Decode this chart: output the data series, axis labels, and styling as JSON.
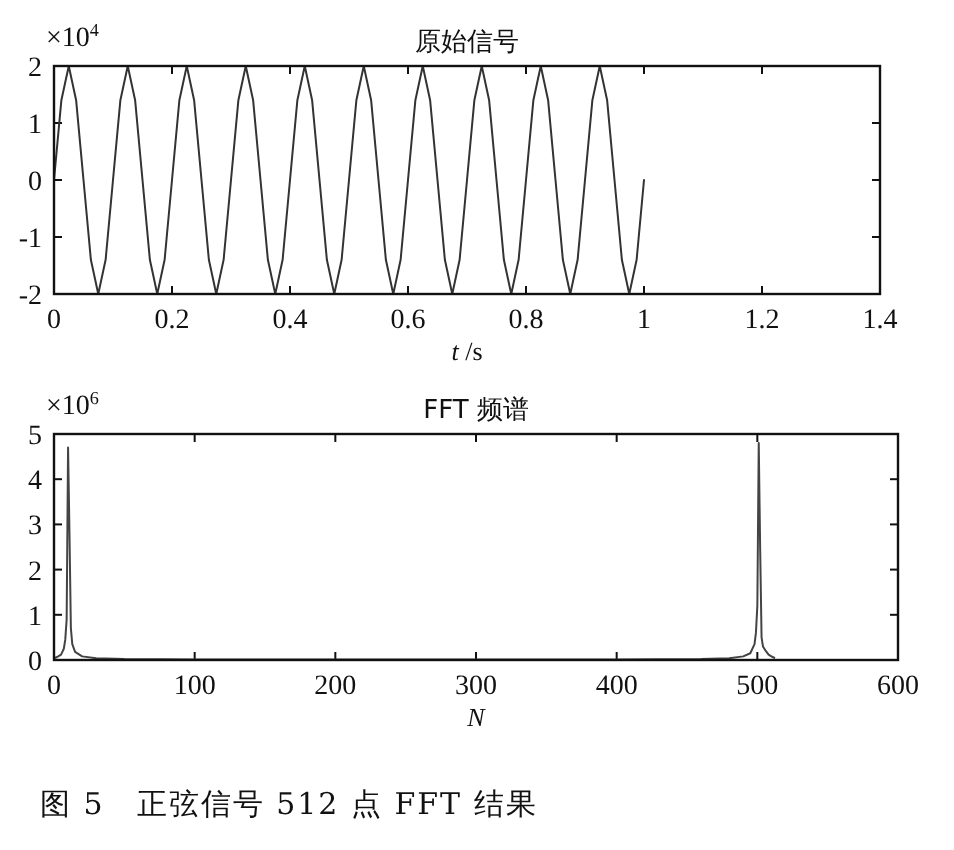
{
  "chart_data": [
    {
      "type": "line",
      "title": "原始信号",
      "xlabel": "*t* /s",
      "annotations": [
        "×10$^{4}$"
      ],
      "xlim": [
        0,
        1.4
      ],
      "ylim": [
        -2,
        2
      ],
      "xticks": [
        0,
        0.2,
        0.4,
        0.6,
        0.8,
        1,
        1.2,
        1.4
      ],
      "yticks": [
        -2,
        -1,
        0,
        1,
        2
      ],
      "series": [
        {
          "color": "#333333",
          "x": [
            0,
            0.0125,
            0.025,
            0.0375,
            0.05,
            0.0625,
            0.075,
            0.0875,
            0.1,
            0.1125,
            0.125,
            0.1375,
            0.15,
            0.1625,
            0.175,
            0.1875,
            0.2,
            0.2125,
            0.225,
            0.2375,
            0.25,
            0.2625,
            0.275,
            0.2875,
            0.3,
            0.3125,
            0.325,
            0.3375,
            0.35,
            0.3625,
            0.375,
            0.3875,
            0.4,
            0.4125,
            0.425,
            0.4375,
            0.45,
            0.4625,
            0.475,
            0.4875,
            0.5,
            0.5125,
            0.525,
            0.5375,
            0.55,
            0.5625,
            0.575,
            0.5875,
            0.6,
            0.6125,
            0.625,
            0.6375,
            0.65,
            0.6625,
            0.675,
            0.6875,
            0.7,
            0.7125,
            0.725,
            0.7375,
            0.75,
            0.7625,
            0.775,
            0.7875,
            0.8,
            0.8125,
            0.825,
            0.8375,
            0.85,
            0.8625,
            0.875,
            0.8875,
            0.9,
            0.9125,
            0.925,
            0.9375,
            0.95,
            0.9625,
            0.975,
            0.9875,
            1
          ],
          "values": [
            0,
            1.4,
            2,
            1.4,
            0,
            -1.4,
            -2,
            -1.4,
            0,
            1.4,
            2,
            1.4,
            0,
            -1.4,
            -2,
            -1.4,
            0,
            1.4,
            2,
            1.4,
            0,
            -1.4,
            -2,
            -1.4,
            0,
            1.4,
            2,
            1.4,
            0,
            -1.4,
            -2,
            -1.4,
            0,
            1.4,
            2,
            1.4,
            0,
            -1.4,
            -2,
            -1.4,
            0,
            1.4,
            2,
            1.4,
            0,
            -1.4,
            -2,
            -1.4,
            0,
            1.4,
            2,
            1.4,
            0,
            -1.4,
            -2,
            -1.4,
            0,
            1.4,
            2,
            1.4,
            0,
            -1.4,
            -2,
            -1.4,
            0,
            1.4,
            2,
            1.4,
            0,
            -1.4,
            -2,
            -1.4,
            0,
            1.4,
            2,
            1.4,
            0,
            -1.4,
            -2,
            -1.4,
            0
          ]
        }
      ]
    },
    {
      "type": "line",
      "title": "FFT 频谱",
      "xlabel": "*N*",
      "annotations": [
        "×10$^{6}$",
        "图 5　正弦信号 512 点 FFT 结果"
      ],
      "xlim": [
        0,
        600
      ],
      "ylim": [
        0,
        5
      ],
      "xticks": [
        0,
        100,
        200,
        300,
        400,
        500,
        600
      ],
      "yticks": [
        0,
        1,
        2,
        3,
        4,
        5
      ],
      "series": [
        {
          "color": "#444444",
          "x": [
            1,
            3,
            5,
            7,
            8,
            9,
            10,
            11,
            12,
            13,
            15,
            20,
            30,
            50,
            100,
            200,
            300,
            400,
            460,
            480,
            490,
            495,
            498,
            499,
            500,
            501,
            502,
            503,
            504,
            506,
            508,
            510,
            512
          ],
          "values": [
            0.05,
            0.08,
            0.12,
            0.25,
            0.45,
            0.9,
            4.7,
            2.8,
            0.7,
            0.35,
            0.18,
            0.08,
            0.04,
            0.02,
            0.01,
            0.01,
            0.01,
            0.01,
            0.02,
            0.04,
            0.08,
            0.15,
            0.35,
            0.6,
            1.2,
            4.8,
            2.5,
            0.5,
            0.3,
            0.2,
            0.12,
            0.08,
            0.05
          ]
        }
      ]
    }
  ]
}
